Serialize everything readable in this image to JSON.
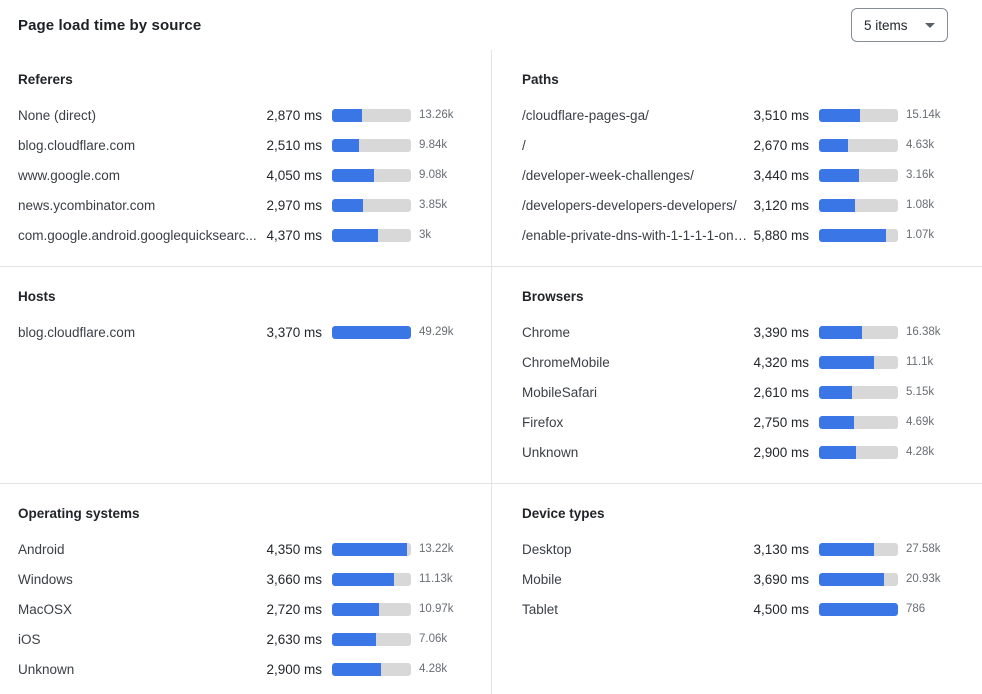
{
  "header": {
    "title": "Page load time by source",
    "items_select": {
      "value": "5 items"
    }
  },
  "colors": {
    "bar_fill": "#3b76e7",
    "bar_track": "#d8d8d8",
    "divider": "#e3e4e6"
  },
  "panels": [
    {
      "title": "Referers",
      "rows": [
        {
          "label": "None (direct)",
          "ms": "2,870 ms",
          "count": "13.26k",
          "bar_pct": 38
        },
        {
          "label": "blog.cloudflare.com",
          "ms": "2,510 ms",
          "count": "9.84k",
          "bar_pct": 34
        },
        {
          "label": "www.google.com",
          "ms": "4,050 ms",
          "count": "9.08k",
          "bar_pct": 53
        },
        {
          "label": "news.ycombinator.com",
          "ms": "2,970 ms",
          "count": "3.85k",
          "bar_pct": 39
        },
        {
          "label": "com.google.android.googlequicksearc...",
          "ms": "4,370 ms",
          "count": "3k",
          "bar_pct": 58
        }
      ]
    },
    {
      "title": "Paths",
      "rows": [
        {
          "label": "/cloudflare-pages-ga/",
          "ms": "3,510 ms",
          "count": "15.14k",
          "bar_pct": 52
        },
        {
          "label": "/",
          "ms": "2,670 ms",
          "count": "4.63k",
          "bar_pct": 37
        },
        {
          "label": "/developer-week-challenges/",
          "ms": "3,440 ms",
          "count": "3.16k",
          "bar_pct": 51
        },
        {
          "label": "/developers-developers-developers/",
          "ms": "3,120 ms",
          "count": "1.08k",
          "bar_pct": 46
        },
        {
          "label": "/enable-private-dns-with-1-1-1-1-on-...",
          "ms": "5,880 ms",
          "count": "1.07k",
          "bar_pct": 85
        }
      ]
    },
    {
      "title": "Hosts",
      "rows": [
        {
          "label": "blog.cloudflare.com",
          "ms": "3,370 ms",
          "count": "49.29k",
          "bar_pct": 100
        }
      ]
    },
    {
      "title": "Browsers",
      "rows": [
        {
          "label": "Chrome",
          "ms": "3,390 ms",
          "count": "16.38k",
          "bar_pct": 55
        },
        {
          "label": "ChromeMobile",
          "ms": "4,320 ms",
          "count": "11.1k",
          "bar_pct": 70
        },
        {
          "label": "MobileSafari",
          "ms": "2,610 ms",
          "count": "5.15k",
          "bar_pct": 42
        },
        {
          "label": "Firefox",
          "ms": "2,750 ms",
          "count": "4.69k",
          "bar_pct": 44
        },
        {
          "label": "Unknown",
          "ms": "2,900 ms",
          "count": "4.28k",
          "bar_pct": 47
        }
      ]
    },
    {
      "title": "Operating systems",
      "rows": [
        {
          "label": "Android",
          "ms": "4,350 ms",
          "count": "13.22k",
          "bar_pct": 95
        },
        {
          "label": "Windows",
          "ms": "3,660 ms",
          "count": "11.13k",
          "bar_pct": 78
        },
        {
          "label": "MacOSX",
          "ms": "2,720 ms",
          "count": "10.97k",
          "bar_pct": 59
        },
        {
          "label": "iOS",
          "ms": "2,630 ms",
          "count": "7.06k",
          "bar_pct": 56
        },
        {
          "label": "Unknown",
          "ms": "2,900 ms",
          "count": "4.28k",
          "bar_pct": 62
        }
      ]
    },
    {
      "title": "Device types",
      "rows": [
        {
          "label": "Desktop",
          "ms": "3,130 ms",
          "count": "27.58k",
          "bar_pct": 69
        },
        {
          "label": "Mobile",
          "ms": "3,690 ms",
          "count": "20.93k",
          "bar_pct": 82
        },
        {
          "label": "Tablet",
          "ms": "4,500 ms",
          "count": "786",
          "bar_pct": 100
        }
      ]
    }
  ]
}
